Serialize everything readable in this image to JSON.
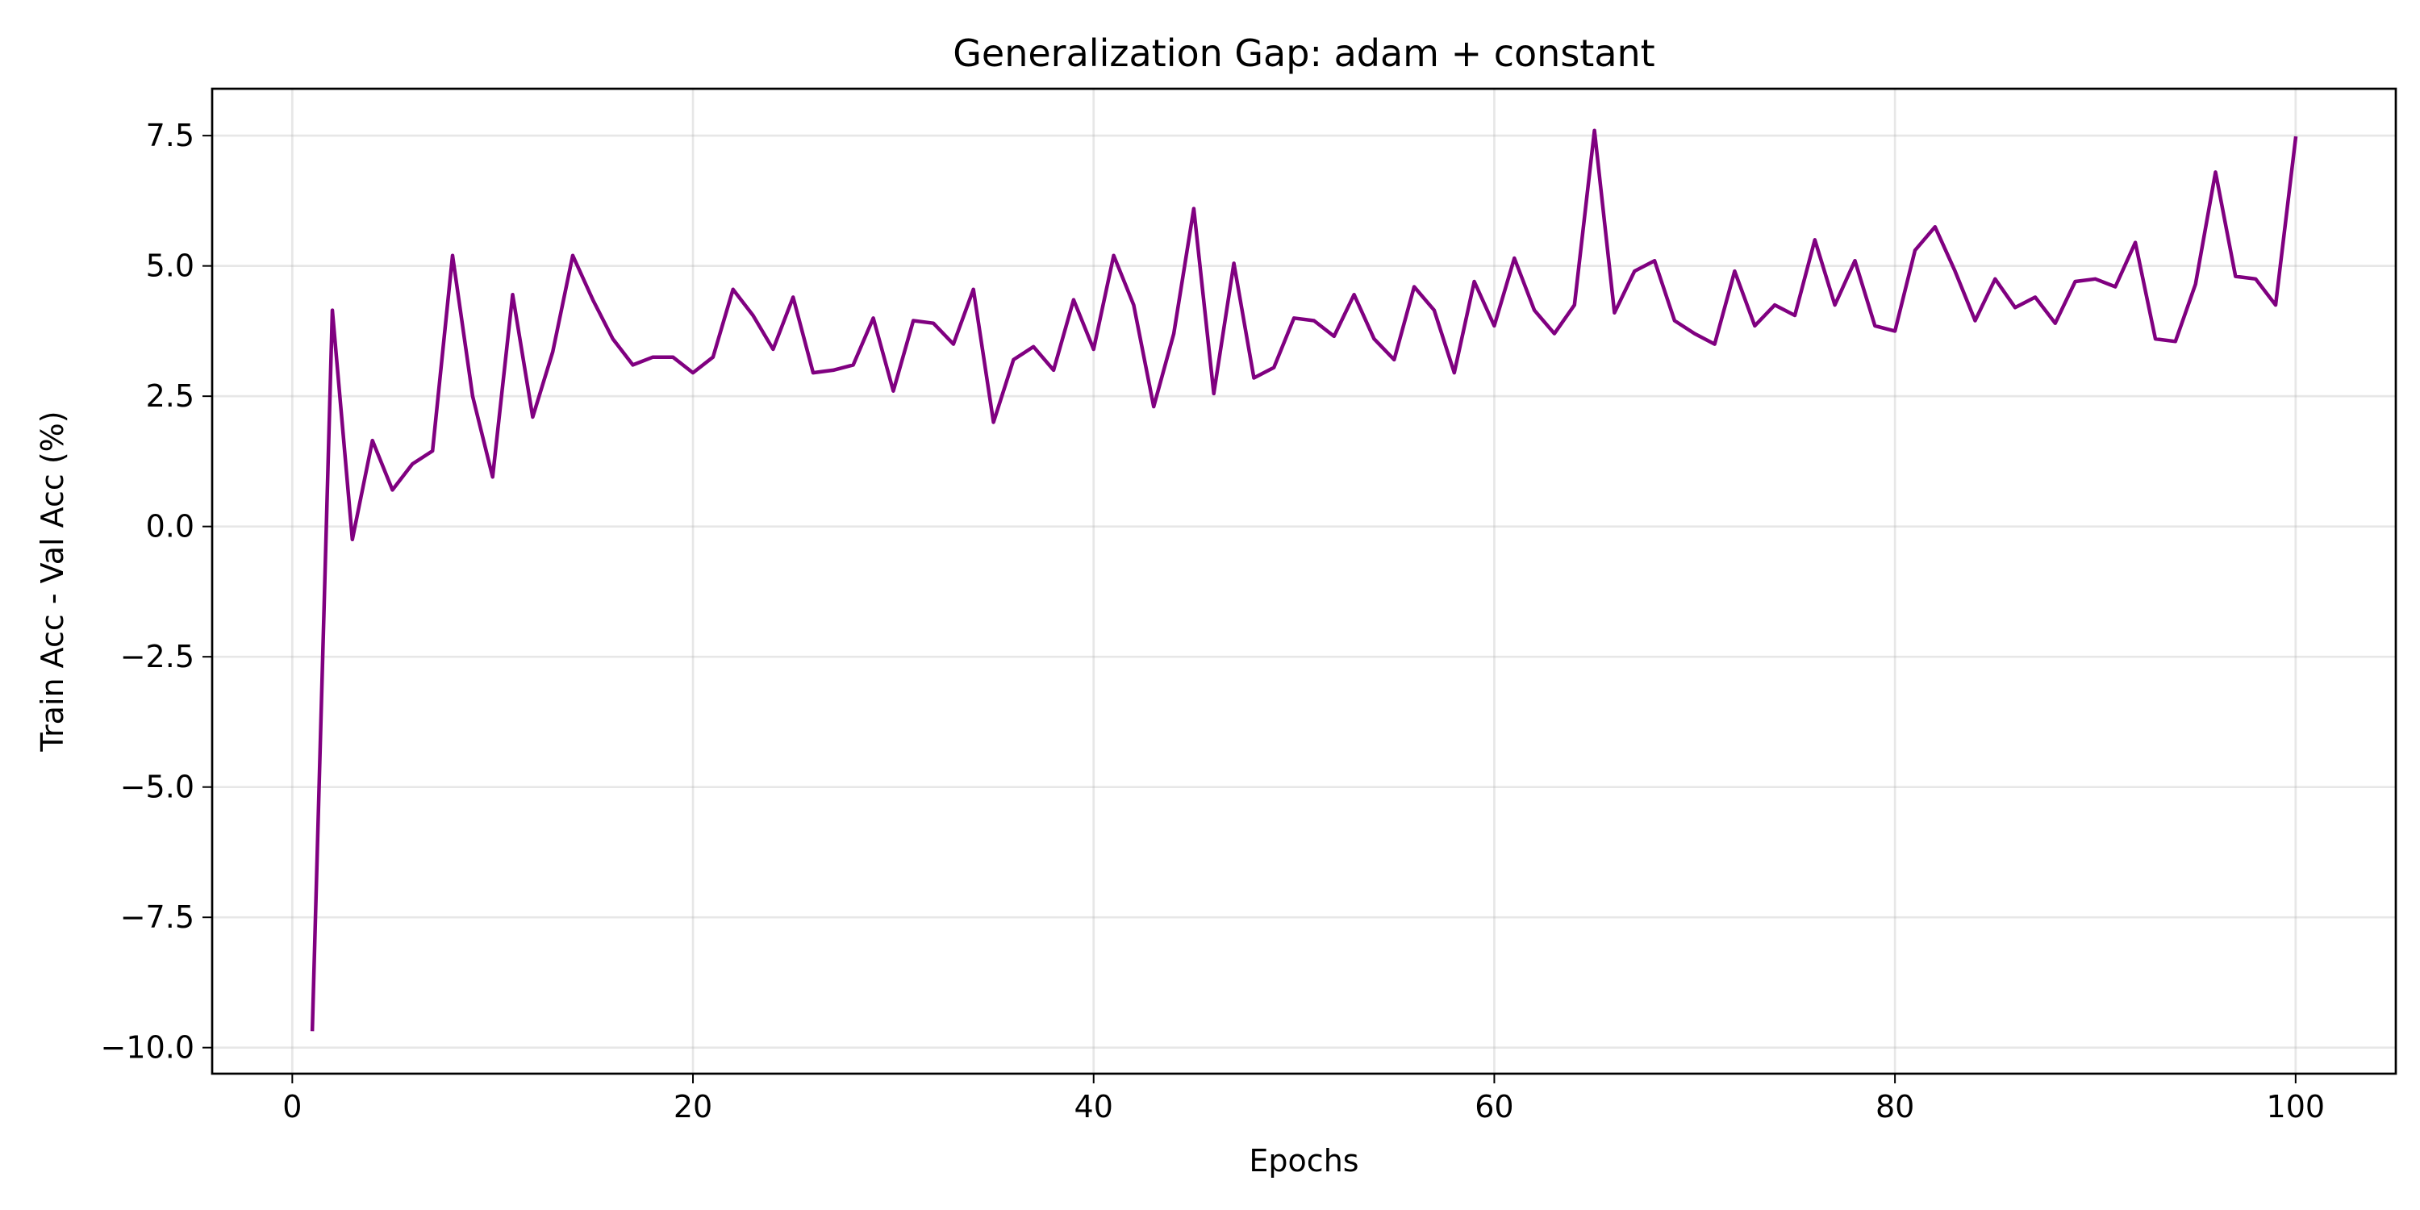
{
  "chart_data": {
    "type": "line",
    "title": "Generalization Gap: adam + constant",
    "xlabel": "Epochs",
    "ylabel": "Train Acc - Val Acc (%)",
    "xlim": [
      -4,
      105
    ],
    "ylim": [
      -10.5,
      8.4
    ],
    "xticks": [
      0,
      20,
      40,
      60,
      80,
      100
    ],
    "xtick_labels": [
      "0",
      "20",
      "40",
      "60",
      "80",
      "100"
    ],
    "yticks": [
      -10.0,
      -7.5,
      -5.0,
      -2.5,
      0.0,
      2.5,
      5.0,
      7.5
    ],
    "ytick_labels": [
      "−10.0",
      "−7.5",
      "−5.0",
      "−2.5",
      "0.0",
      "2.5",
      "5.0",
      "7.5"
    ],
    "grid": true,
    "line_color": "#800080",
    "series": [
      {
        "x": [
          1,
          2,
          3,
          4,
          5,
          6,
          7,
          8,
          9,
          10,
          11,
          12,
          13,
          14,
          15,
          16,
          17,
          18,
          19,
          20,
          21,
          22,
          23,
          24,
          25,
          26,
          27,
          28,
          29,
          30,
          31,
          32,
          33,
          34,
          35,
          36,
          37,
          38,
          39,
          40,
          41,
          42,
          43,
          44,
          45,
          46,
          47,
          48,
          49,
          50,
          51,
          52,
          53,
          54,
          55,
          56,
          57,
          58,
          59,
          60,
          61,
          62,
          63,
          64,
          65,
          66,
          67,
          68,
          69,
          70,
          71,
          72,
          73,
          74,
          75,
          76,
          77,
          78,
          79,
          80,
          81,
          82,
          83,
          84,
          85,
          86,
          87,
          88,
          89,
          90,
          91,
          92,
          93,
          94,
          95,
          96,
          97,
          98,
          99,
          100
        ],
        "values": [
          -9.65,
          4.15,
          -0.25,
          1.65,
          0.7,
          1.2,
          1.45,
          5.2,
          2.5,
          0.95,
          4.45,
          2.1,
          3.35,
          5.2,
          4.35,
          3.6,
          3.1,
          3.25,
          3.25,
          2.95,
          3.25,
          4.55,
          4.05,
          3.4,
          4.4,
          2.95,
          3.0,
          3.1,
          4.0,
          2.6,
          3.95,
          3.9,
          3.5,
          4.55,
          2.0,
          3.2,
          3.45,
          3.0,
          4.35,
          3.4,
          5.2,
          4.25,
          2.3,
          3.7,
          6.1,
          2.55,
          5.05,
          2.85,
          3.05,
          4.0,
          3.95,
          3.65,
          4.45,
          3.6,
          3.2,
          4.6,
          4.15,
          2.95,
          4.7,
          3.85,
          5.15,
          4.15,
          3.7,
          4.25,
          7.6,
          4.1,
          4.9,
          5.1,
          3.95,
          3.7,
          3.5,
          4.9,
          3.85,
          4.25,
          4.05,
          5.5,
          4.25,
          5.1,
          3.85,
          3.75,
          5.3,
          5.75,
          4.9,
          3.95,
          4.75,
          4.2,
          4.4,
          3.9,
          4.7,
          4.75,
          4.6,
          5.45,
          3.6,
          3.55,
          4.65,
          6.8,
          4.8,
          4.75,
          4.25,
          7.45
        ]
      }
    ]
  }
}
